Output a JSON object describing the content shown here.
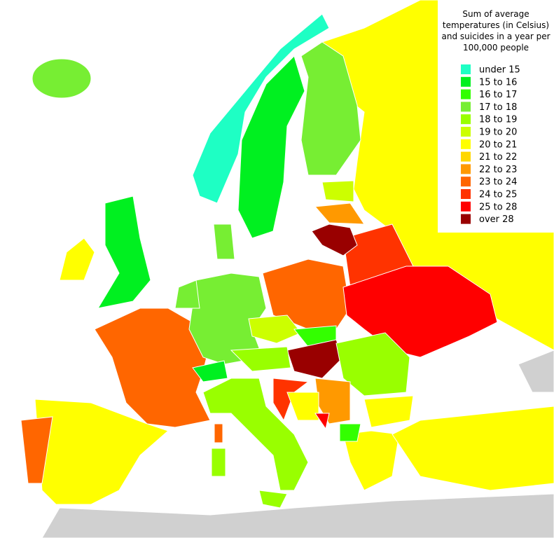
{
  "legend": {
    "title_lines": [
      "Sum of average",
      "temperatures (in Celsius)",
      "and suicides in a year per",
      "100,000 people"
    ],
    "items": [
      {
        "label": "under 15",
        "color": "#1effc4"
      },
      {
        "label": "15 to  16",
        "color": "#00f020"
      },
      {
        "label": "16 to  17",
        "color": "#33ff00"
      },
      {
        "label": "17 to  18",
        "color": "#77ee33"
      },
      {
        "label": "18 to  19",
        "color": "#99ff00"
      },
      {
        "label": "19 to  20",
        "color": "#ccff00"
      },
      {
        "label": "20 to  21",
        "color": "#ffff00"
      },
      {
        "label": "21 to  22",
        "color": "#ffd700"
      },
      {
        "label": "22 to  23",
        "color": "#ff9900"
      },
      {
        "label": "23 to  24",
        "color": "#ff6600"
      },
      {
        "label": "24 to  25",
        "color": "#ff3300"
      },
      {
        "label": "25 to  28",
        "color": "#ff0000"
      },
      {
        "label": "over 28",
        "color": "#990000"
      }
    ]
  }
}
